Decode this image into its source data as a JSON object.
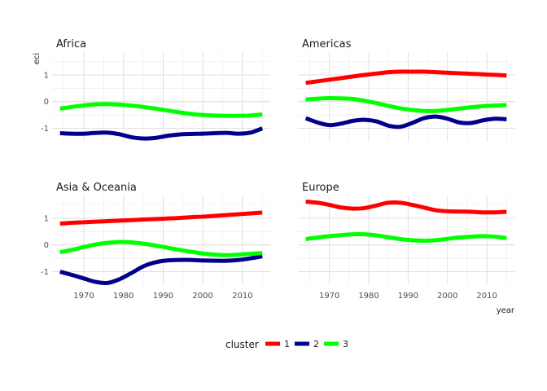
{
  "chart_data": {
    "type": "line",
    "xlabel": "year",
    "ylabel": "eci",
    "xlim": [
      1962,
      2017
    ],
    "ylim": [
      -1.5,
      1.85
    ],
    "x_ticks": [
      1970,
      1980,
      1990,
      2000,
      2010
    ],
    "y_ticks": [
      1,
      0,
      -1
    ],
    "legend": {
      "title": "cluster",
      "position": "bottom",
      "entries": [
        {
          "name": "1",
          "color": "#ff0000"
        },
        {
          "name": "2",
          "color": "#00008b"
        },
        {
          "name": "3",
          "color": "#00ff00"
        }
      ]
    },
    "facets": [
      {
        "title": "Africa",
        "series": [
          {
            "name": "2",
            "color": "#00008b",
            "x": [
              1964,
              1967,
              1970,
              1973,
              1976,
              1979,
              1982,
              1985,
              1988,
              1991,
              1994,
              1997,
              2000,
              2003,
              2006,
              2009,
              2012,
              2015
            ],
            "y": [
              -1.18,
              -1.2,
              -1.2,
              -1.17,
              -1.16,
              -1.22,
              -1.33,
              -1.38,
              -1.36,
              -1.28,
              -1.23,
              -1.21,
              -1.2,
              -1.18,
              -1.17,
              -1.2,
              -1.16,
              -1.0
            ]
          },
          {
            "name": "3",
            "color": "#00ff00",
            "x": [
              1964,
              1967,
              1970,
              1973,
              1976,
              1979,
              1982,
              1985,
              1988,
              1991,
              1994,
              1997,
              2000,
              2003,
              2006,
              2009,
              2012,
              2015
            ],
            "y": [
              -0.26,
              -0.2,
              -0.14,
              -0.1,
              -0.09,
              -0.11,
              -0.15,
              -0.2,
              -0.26,
              -0.33,
              -0.4,
              -0.46,
              -0.5,
              -0.52,
              -0.53,
              -0.53,
              -0.52,
              -0.48
            ]
          }
        ]
      },
      {
        "title": "Americas",
        "series": [
          {
            "name": "1",
            "color": "#ff0000",
            "x": [
              1964,
              1967,
              1970,
              1973,
              1976,
              1979,
              1982,
              1985,
              1988,
              1991,
              1994,
              1997,
              2000,
              2003,
              2006,
              2009,
              2012,
              2015
            ],
            "y": [
              0.7,
              0.76,
              0.82,
              0.88,
              0.94,
              1.0,
              1.05,
              1.1,
              1.12,
              1.12,
              1.12,
              1.1,
              1.08,
              1.06,
              1.04,
              1.02,
              1.0,
              0.98
            ]
          },
          {
            "name": "2",
            "color": "#00008b",
            "x": [
              1964,
              1967,
              1970,
              1973,
              1976,
              1979,
              1982,
              1985,
              1988,
              1991,
              1994,
              1997,
              2000,
              2003,
              2006,
              2009,
              2012,
              2015
            ],
            "y": [
              -0.62,
              -0.78,
              -0.88,
              -0.82,
              -0.72,
              -0.68,
              -0.74,
              -0.9,
              -0.94,
              -0.8,
              -0.62,
              -0.56,
              -0.64,
              -0.78,
              -0.8,
              -0.7,
              -0.64,
              -0.66
            ]
          },
          {
            "name": "3",
            "color": "#00ff00",
            "x": [
              1964,
              1967,
              1970,
              1973,
              1976,
              1979,
              1982,
              1985,
              1988,
              1991,
              1994,
              1997,
              2000,
              2003,
              2006,
              2009,
              2012,
              2015
            ],
            "y": [
              0.08,
              0.11,
              0.13,
              0.12,
              0.1,
              0.03,
              -0.06,
              -0.16,
              -0.25,
              -0.31,
              -0.35,
              -0.35,
              -0.31,
              -0.26,
              -0.21,
              -0.17,
              -0.15,
              -0.13
            ]
          }
        ]
      },
      {
        "title": "Asia & Oceania",
        "series": [
          {
            "name": "1",
            "color": "#ff0000",
            "x": [
              1964,
              1967,
              1970,
              1973,
              1976,
              1979,
              1982,
              1985,
              1988,
              1991,
              1994,
              1997,
              2000,
              2003,
              2006,
              2009,
              2012,
              2015
            ],
            "y": [
              0.8,
              0.83,
              0.85,
              0.87,
              0.89,
              0.91,
              0.93,
              0.95,
              0.97,
              0.99,
              1.01,
              1.04,
              1.06,
              1.09,
              1.12,
              1.15,
              1.18,
              1.21
            ]
          },
          {
            "name": "2",
            "color": "#00008b",
            "x": [
              1964,
              1967,
              1970,
              1973,
              1976,
              1979,
              1982,
              1985,
              1988,
              1991,
              1994,
              1997,
              2000,
              2003,
              2006,
              2009,
              2012,
              2015
            ],
            "y": [
              -1.0,
              -1.12,
              -1.25,
              -1.38,
              -1.42,
              -1.28,
              -1.05,
              -0.8,
              -0.65,
              -0.58,
              -0.56,
              -0.56,
              -0.58,
              -0.59,
              -0.59,
              -0.56,
              -0.5,
              -0.42
            ]
          },
          {
            "name": "3",
            "color": "#00ff00",
            "x": [
              1964,
              1967,
              1970,
              1973,
              1976,
              1979,
              1982,
              1985,
              1988,
              1991,
              1994,
              1997,
              2000,
              2003,
              2006,
              2009,
              2012,
              2015
            ],
            "y": [
              -0.27,
              -0.18,
              -0.08,
              0.02,
              0.08,
              0.11,
              0.1,
              0.05,
              -0.02,
              -0.1,
              -0.18,
              -0.25,
              -0.32,
              -0.36,
              -0.38,
              -0.36,
              -0.33,
              -0.3
            ]
          }
        ]
      },
      {
        "title": "Europe",
        "series": [
          {
            "name": "1",
            "color": "#ff0000",
            "x": [
              1964,
              1967,
              1970,
              1973,
              1976,
              1979,
              1982,
              1985,
              1988,
              1991,
              1994,
              1997,
              2000,
              2003,
              2006,
              2009,
              2012,
              2015
            ],
            "y": [
              1.62,
              1.58,
              1.5,
              1.4,
              1.36,
              1.38,
              1.48,
              1.58,
              1.58,
              1.5,
              1.4,
              1.3,
              1.26,
              1.25,
              1.24,
              1.22,
              1.22,
              1.24
            ]
          },
          {
            "name": "3",
            "color": "#00ff00",
            "x": [
              1964,
              1967,
              1970,
              1973,
              1976,
              1979,
              1982,
              1985,
              1988,
              1991,
              1994,
              1997,
              2000,
              2003,
              2006,
              2009,
              2012,
              2015
            ],
            "y": [
              0.22,
              0.28,
              0.33,
              0.37,
              0.4,
              0.4,
              0.36,
              0.29,
              0.22,
              0.18,
              0.16,
              0.18,
              0.23,
              0.28,
              0.31,
              0.33,
              0.31,
              0.26
            ]
          }
        ]
      }
    ]
  }
}
